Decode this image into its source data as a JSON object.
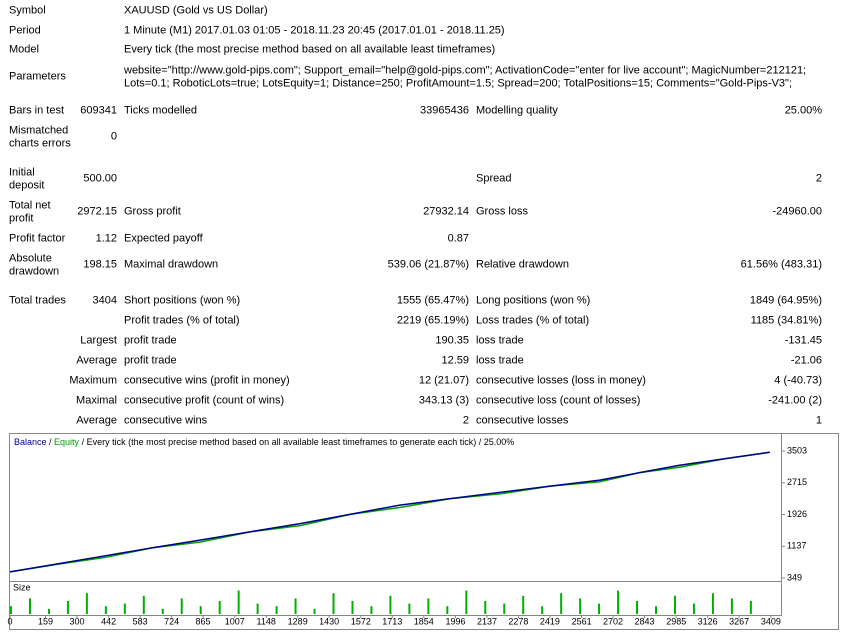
{
  "report": {
    "header": [
      {
        "label": "Symbol",
        "value": [
          "XAUUSD (Gold vs US Dollar)"
        ]
      },
      {
        "label": "Period",
        "value": [
          "1 Minute (M1) 2017.01.03 01:05 - 2018.11.23 20:45 (2017.01.01 - 2018.11.25)"
        ]
      },
      {
        "label": "Model",
        "value": [
          "Every tick (the most precise method based on all available least timeframes)"
        ]
      },
      {
        "label": "Parameters",
        "value": [
          "website=\"http://www.gold-pips.com\"; Support_email=\"help@gold-pips.com\"; ActivationCode=\"enter for live account\"; MagicNumber=212121;",
          "Lots=0.1; RoboticLots=true; LotsEquity=1; Distance=250; ProfitAmount=1.5; Spread=200; TotalPositions=15; Comments=\"Gold-Pips-V3\";"
        ]
      }
    ],
    "stats": [
      [
        [
          "Bars in test"
        ],
        "609341",
        "Ticks modelled",
        "33965436",
        "Modelling quality",
        "25.00%"
      ],
      [
        [
          "Mismatched",
          "charts errors"
        ],
        "0",
        null,
        null,
        null,
        null
      ],
      [
        [
          "Initial",
          "deposit"
        ],
        "500.00",
        null,
        null,
        "Spread",
        "2"
      ],
      [
        [
          "Total net",
          "profit"
        ],
        "2972.15",
        "Gross profit",
        "27932.14",
        "Gross loss",
        "-24960.00"
      ],
      [
        [
          "Profit factor"
        ],
        "1.12",
        "Expected payoff",
        "0.87",
        null,
        null
      ],
      [
        [
          "Absolute",
          "drawdown"
        ],
        "198.15",
        "Maximal drawdown",
        "539.06 (21.87%)",
        "Relative drawdown",
        "61.56% (483.31)"
      ],
      [
        [
          "Total trades"
        ],
        "3404",
        "Short positions (won %)",
        "1555 (65.47%)",
        "Long positions (won %)",
        "1849 (64.95%)"
      ],
      [
        null,
        null,
        "Profit trades (% of total)",
        "2219 (65.19%)",
        "Loss trades (% of total)",
        "1185 (34.81%)"
      ],
      [
        null,
        "Largest",
        "profit trade",
        "190.35",
        "loss trade",
        "-131.45"
      ],
      [
        null,
        "Average",
        "profit trade",
        "12.59",
        "loss trade",
        "-21.06"
      ],
      [
        null,
        "Maximum",
        "consecutive wins (profit in money)",
        "12 (21.07)",
        "consecutive losses (loss in money)",
        "4 (-40.73)"
      ],
      [
        null,
        "Maximal",
        "consecutive profit (count of wins)",
        "343.13 (3)",
        "consecutive loss (count of losses)",
        "-241.00 (2)"
      ],
      [
        null,
        "Average",
        "consecutive wins",
        "2",
        "consecutive losses",
        "1"
      ]
    ]
  },
  "chart_data": {
    "type": "line",
    "caption": "Every tick (the most precise method based on all available least timeframes to generate each tick)",
    "quality": "25.00%",
    "separator": " / ",
    "x": [
      0,
      213,
      426,
      639,
      851,
      1075,
      1300,
      1523,
      1747,
      1973,
      2200,
      2421,
      2643,
      2821,
      3000,
      3202,
      3404
    ],
    "series": [
      {
        "name": "Balance",
        "color": "#00008b",
        "values": [
          500,
          700,
          900,
          1100,
          1290,
          1495,
          1700,
          1930,
          2160,
          2320,
          2480,
          2630,
          2780,
          2965,
          3150,
          3310,
          3472
        ]
      },
      {
        "name": "Equity",
        "color": "#00a000",
        "values": [
          500,
          690,
          860,
          1100,
          1240,
          1495,
          1650,
          1930,
          2100,
          2320,
          2440,
          2630,
          2740,
          2965,
          3100,
          3310,
          3472
        ]
      }
    ],
    "ylim": [
      349,
      3503
    ],
    "yticks": [
      349,
      1137,
      1926,
      2715,
      3503
    ],
    "xlim": [
      0,
      3450
    ],
    "xticks": [
      0,
      159,
      300,
      442,
      583,
      724,
      865,
      1007,
      1148,
      1289,
      1430,
      1572,
      1713,
      1854,
      1996,
      2137,
      2278,
      2419,
      2561,
      2702,
      2843,
      2985,
      3126,
      3267,
      3409
    ],
    "size": {
      "label": "Size",
      "color": "#00b000",
      "ylim": [
        0,
        10
      ],
      "x": [
        0,
        85,
        170,
        255,
        340,
        425,
        510,
        595,
        680,
        765,
        850,
        935,
        1020,
        1105,
        1190,
        1275,
        1360,
        1445,
        1530,
        1615,
        1700,
        1785,
        1870,
        1955,
        2040,
        2125,
        2210,
        2295,
        2380,
        2465,
        2550,
        2635,
        2720,
        2805,
        2890,
        2975,
        3060,
        3145,
        3230,
        3315
      ],
      "values": [
        3,
        6,
        2,
        5,
        8,
        3,
        4,
        7,
        2,
        6,
        3,
        5,
        9,
        4,
        3,
        6,
        2,
        8,
        5,
        3,
        7,
        4,
        6,
        3,
        9,
        5,
        4,
        7,
        3,
        8,
        6,
        4,
        9,
        5,
        3,
        7,
        4,
        8,
        6,
        5
      ]
    }
  }
}
